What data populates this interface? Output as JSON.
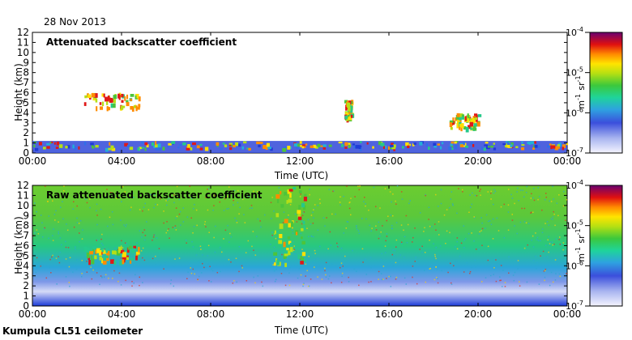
{
  "date": "28 Nov 2013",
  "station_label": "Kumpula CL51 ceilometer",
  "chart_data": [
    {
      "type": "heatmap",
      "title": "Attenuated backscatter coefficient",
      "xlabel": "Time (UTC)",
      "ylabel": "Height (km)",
      "x_ticks": [
        "00:00",
        "04:00",
        "08:00",
        "12:00",
        "16:00",
        "20:00",
        "00:00"
      ],
      "x_range_hours": [
        0,
        24
      ],
      "y_ticks": [
        0,
        1,
        2,
        3,
        4,
        5,
        6,
        7,
        8,
        9,
        10,
        11,
        12
      ],
      "ylim": [
        0,
        12
      ],
      "colorbar": {
        "ticks": [
          "10",
          "10",
          "10",
          "10"
        ],
        "exponents": [
          "-7",
          "-6",
          "-5",
          "-4"
        ],
        "unit_base": [
          "m",
          "sr"
        ],
        "unit_exponents": [
          "-1",
          "-1"
        ],
        "range": [
          1e-07,
          0.0001
        ],
        "scale": "log"
      },
      "features": [
        {
          "label": "boundary layer aerosol",
          "from_h": 0,
          "to_h": 24,
          "height_km": [
            0,
            1.2
          ]
        },
        {
          "label": "cloud layer",
          "from_h": 2.3,
          "to_h": 4.8,
          "height_km": [
            4.5,
            6.0
          ]
        },
        {
          "label": "cloud layer",
          "from_h": 14.0,
          "to_h": 14.3,
          "height_km": [
            3.5,
            5.3
          ]
        },
        {
          "label": "low cloud",
          "from_h": 18.7,
          "to_h": 20.0,
          "height_km": [
            2.5,
            4.0
          ]
        }
      ]
    },
    {
      "type": "heatmap",
      "title": "Raw attenuated backscatter coefficient",
      "xlabel": "Time (UTC)",
      "ylabel": "Height (km)",
      "x_ticks": [
        "00:00",
        "04:00",
        "08:00",
        "12:00",
        "16:00",
        "20:00",
        "00:00"
      ],
      "x_range_hours": [
        0,
        24
      ],
      "y_ticks": [
        0,
        1,
        2,
        3,
        4,
        5,
        6,
        7,
        8,
        9,
        10,
        11,
        12
      ],
      "ylim": [
        0,
        12
      ],
      "colorbar": {
        "ticks": [
          "10",
          "10",
          "10",
          "10"
        ],
        "exponents": [
          "-7",
          "-6",
          "-5",
          "-4"
        ],
        "unit_base": [
          "m",
          "sr"
        ],
        "unit_exponents": [
          "-1",
          "-1"
        ],
        "range": [
          1e-07,
          0.0001
        ],
        "scale": "log"
      },
      "features": [
        {
          "label": "noisy background",
          "from_h": 0,
          "to_h": 24,
          "height_km": [
            2,
            12
          ]
        },
        {
          "label": "cloud layer",
          "from_h": 2.3,
          "to_h": 4.8,
          "height_km": [
            4.5,
            6.0
          ]
        },
        {
          "label": "precipitation column",
          "from_h": 10.8,
          "to_h": 12.2,
          "height_km": [
            4.0,
            12.0
          ]
        }
      ]
    }
  ]
}
